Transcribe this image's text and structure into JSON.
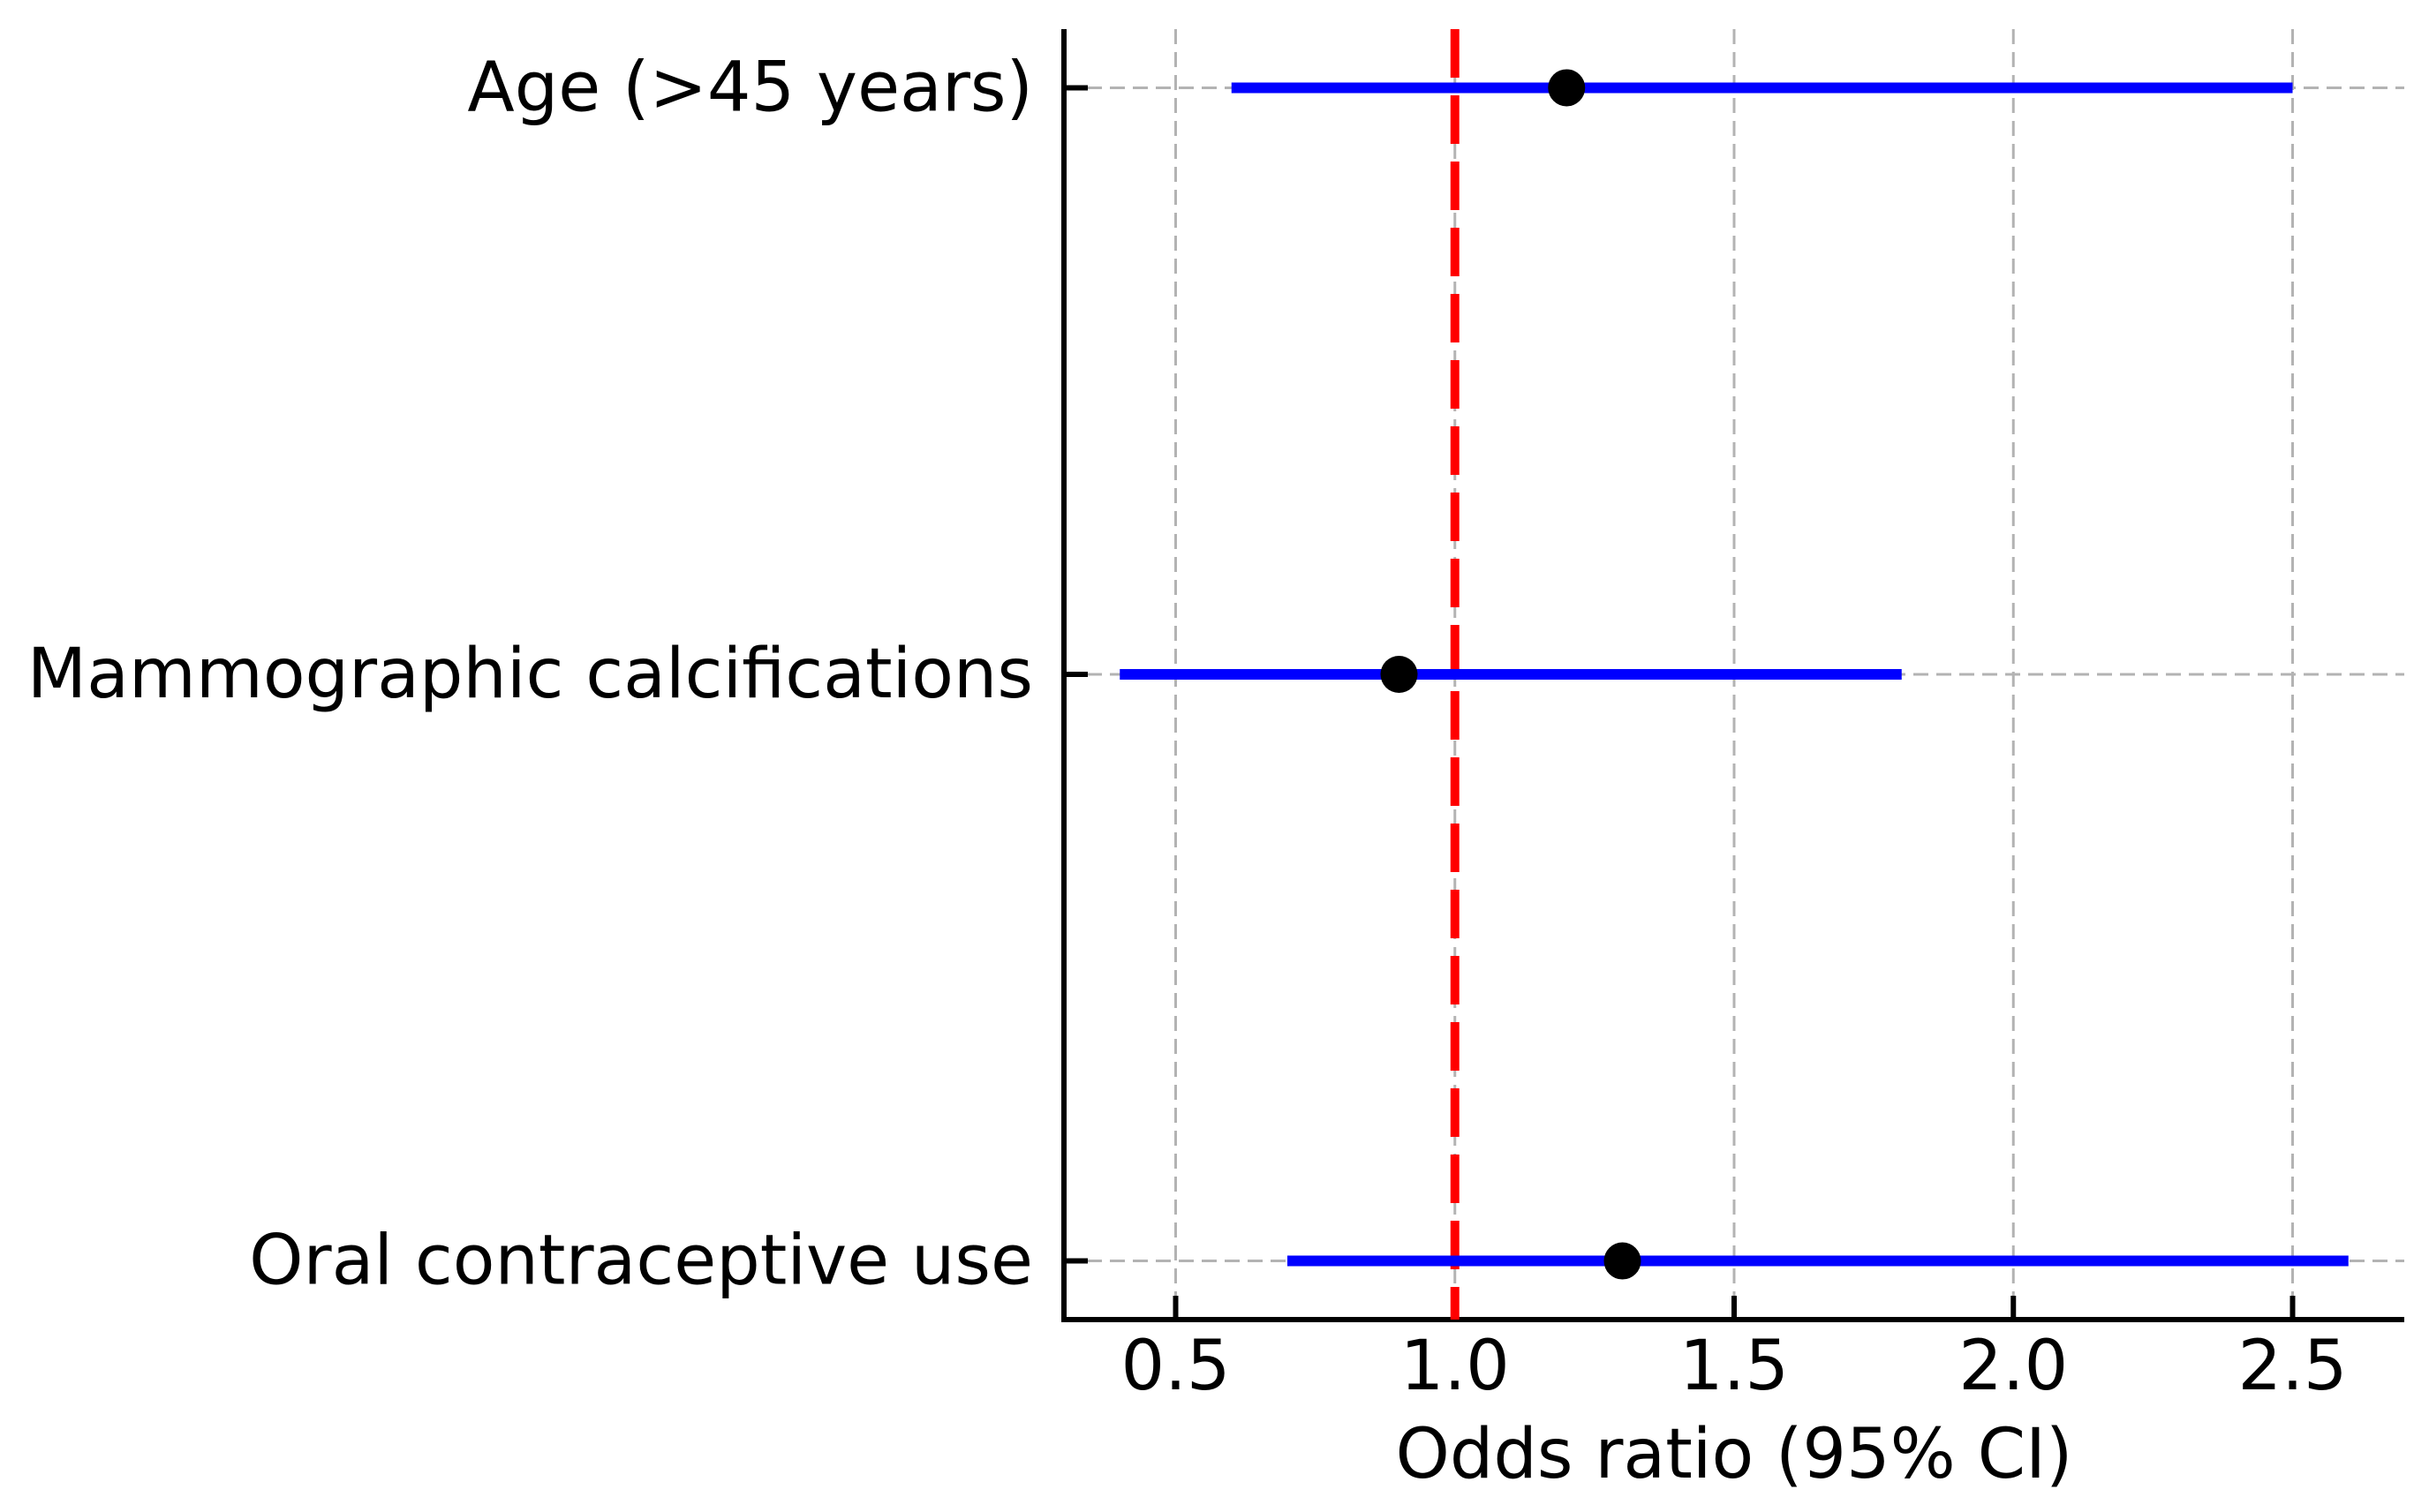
{
  "figure": {
    "background": "#ffffff"
  },
  "chart_data": {
    "type": "scatter",
    "subtype": "forest-plot",
    "title": "",
    "xlabel": "Odds ratio (95% CI)",
    "ylabel": "",
    "xlim": [
      0.3,
      2.7
    ],
    "x_ticks": [
      0.5,
      1.0,
      1.5,
      2.0,
      2.5
    ],
    "x_tick_labels": [
      "0.5",
      "1.0",
      "1.5",
      "2.0",
      "2.5"
    ],
    "grid": true,
    "legend": "none",
    "reference_line": {
      "x": 1.0,
      "color": "#ff0000",
      "style": "dashed"
    },
    "rows": [
      {
        "label": "Age (>45 years)",
        "or": 1.2,
        "ci_low": 0.6,
        "ci_high": 2.5
      },
      {
        "label": "Mammographic calcifications",
        "or": 0.9,
        "ci_low": 0.4,
        "ci_high": 1.8
      },
      {
        "label": "Oral contraceptive use",
        "or": 1.3,
        "ci_low": 0.7,
        "ci_high": 2.6
      }
    ],
    "colors": {
      "ci_line": "#0000ff",
      "point": "#000000",
      "grid": "#b3b3b3",
      "axis": "#000000",
      "reference": "#ff0000",
      "text": "#000000"
    }
  }
}
